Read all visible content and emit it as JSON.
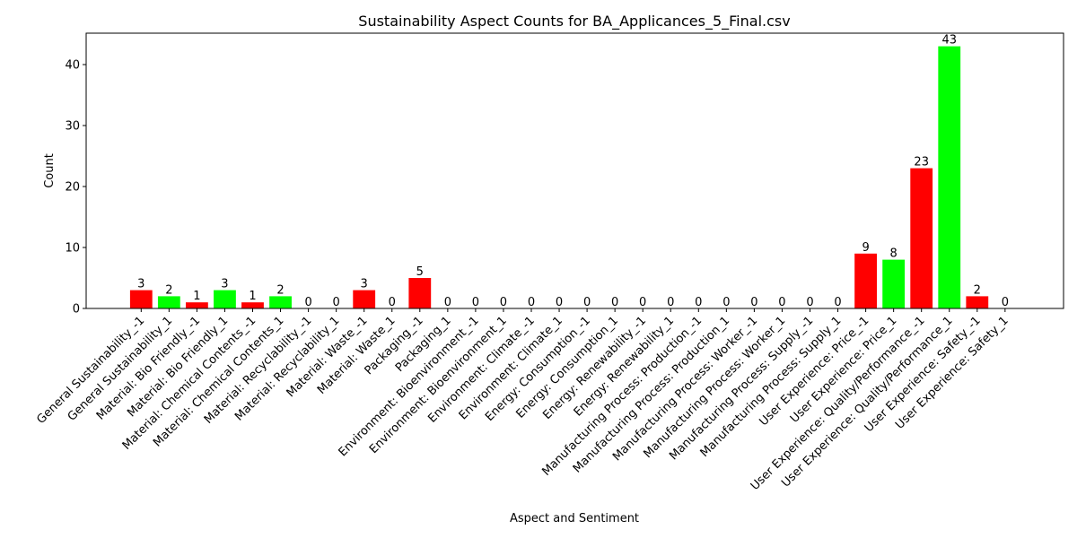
{
  "chart_data": {
    "type": "bar",
    "title": "Sustainability Aspect Counts for BA_Applicances_5_Final.csv",
    "xlabel": "Aspect and Sentiment",
    "ylabel": "Count",
    "ylim": [
      0,
      45.15
    ],
    "yticks": [
      0,
      10,
      20,
      30,
      40
    ],
    "grid": false,
    "colors": {
      "negative": "#ff0000",
      "positive": "#00ff00"
    },
    "categories": [
      "General Sustainability_-1",
      "General Sustainability_1",
      "Material: Bio Friendly_-1",
      "Material: Bio Friendly_1",
      "Material: Chemical Contents_-1",
      "Material: Chemical Contents_1",
      "Material: Recyclability_-1",
      "Material: Recyclability_1",
      "Material: Waste_-1",
      "Material: Waste_1",
      "Packaging_-1",
      "Packaging_1",
      "Environment: Bioenvironment_-1",
      "Environment: Bioenvironment_1",
      "Environment: Climate_-1",
      "Environment: Climate_1",
      "Energy: Consumption_-1",
      "Energy: Consumption_1",
      "Energy: Renewability_-1",
      "Energy: Renewability_1",
      "Manufacturing Process: Production_-1",
      "Manufacturing Process: Production_1",
      "Manufacturing Process: Worker_-1",
      "Manufacturing Process: Worker_1",
      "Manufacturing Process: Supply_-1",
      "Manufacturing Process: Supply_1",
      "User Experience: Price_-1",
      "User Experience: Price_1",
      "User Experience: Quality/Performance_-1",
      "User Experience: Quality/Performance_1",
      "User Experience: Safety_-1",
      "User Experience: Safety_1"
    ],
    "values": [
      3,
      2,
      1,
      3,
      1,
      2,
      0,
      0,
      3,
      0,
      5,
      0,
      0,
      0,
      0,
      0,
      0,
      0,
      0,
      0,
      0,
      0,
      0,
      0,
      0,
      0,
      9,
      8,
      23,
      43,
      2,
      0
    ],
    "sentiment": [
      -1,
      1,
      -1,
      1,
      -1,
      1,
      -1,
      1,
      -1,
      1,
      -1,
      1,
      -1,
      1,
      -1,
      1,
      -1,
      1,
      -1,
      1,
      -1,
      1,
      -1,
      1,
      -1,
      1,
      -1,
      1,
      -1,
      1,
      -1,
      1
    ]
  }
}
